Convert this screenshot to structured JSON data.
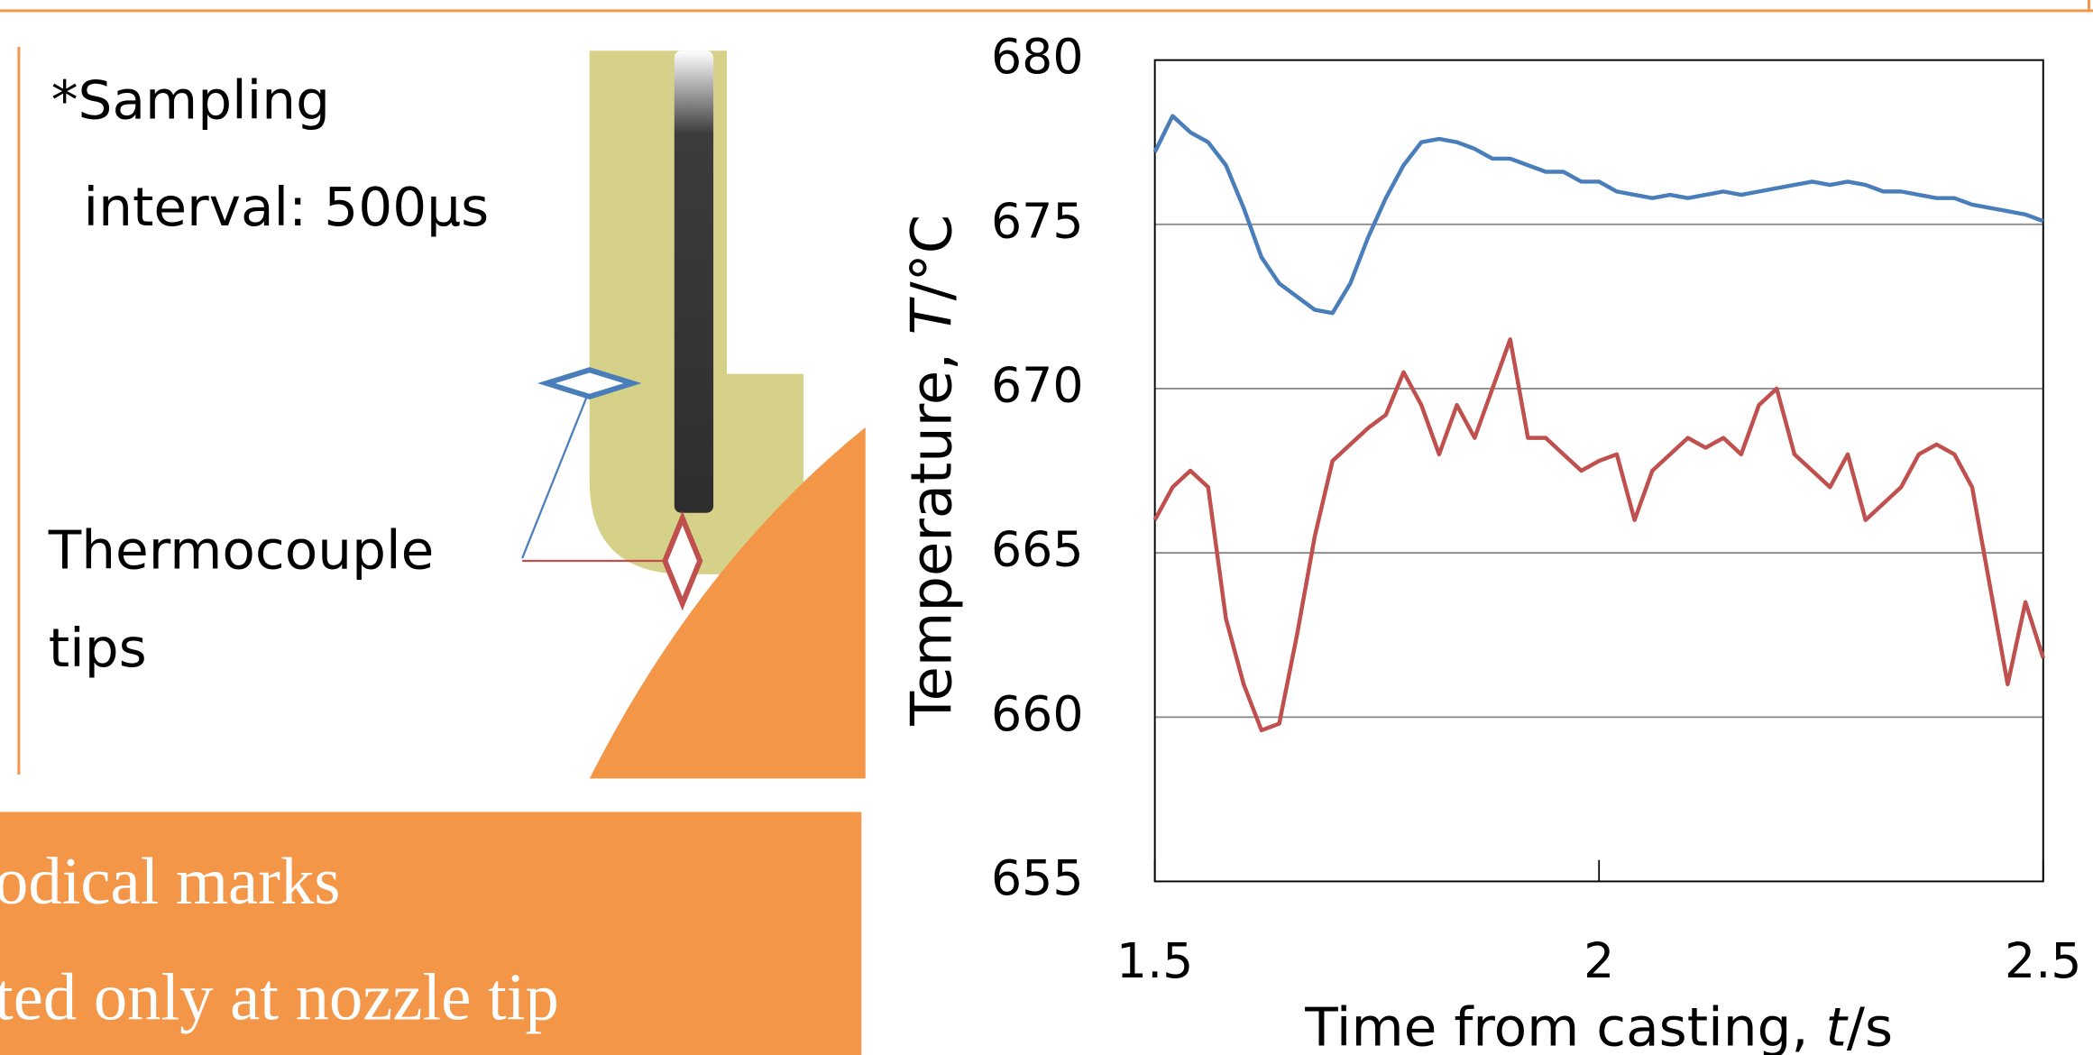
{
  "diagram": {
    "note_lines": [
      "*Sampling",
      "interval: 500µs"
    ],
    "label_lines": [
      "Thermocouple",
      "tips"
    ]
  },
  "banner": {
    "lines": [
      "odical marks",
      "ted only at nozzle tip"
    ]
  },
  "chart_data": {
    "type": "line",
    "y_label_parts": [
      "Temperature, ",
      "T",
      "/°C"
    ],
    "x_label_parts": [
      "Time from casting, ",
      "t",
      "/s"
    ],
    "x": [
      1.5,
      1.52,
      1.54,
      1.56,
      1.58,
      1.6,
      1.62,
      1.64,
      1.66,
      1.68,
      1.7,
      1.72,
      1.74,
      1.76,
      1.78,
      1.8,
      1.82,
      1.84,
      1.86,
      1.88,
      1.9,
      1.92,
      1.94,
      1.96,
      1.98,
      2.0,
      2.02,
      2.04,
      2.06,
      2.08,
      2.1,
      2.12,
      2.14,
      2.16,
      2.18,
      2.2,
      2.22,
      2.24,
      2.26,
      2.28,
      2.3,
      2.32,
      2.34,
      2.36,
      2.38,
      2.4,
      2.42,
      2.44,
      2.46,
      2.48,
      2.5
    ],
    "series": [
      {
        "color": "#4a7ebb",
        "values": [
          677.2,
          678.3,
          677.8,
          677.5,
          676.8,
          675.5,
          674,
          673.2,
          672.8,
          672.4,
          672.3,
          673.2,
          674.6,
          675.8,
          676.8,
          677.5,
          677.6,
          677.5,
          677.3,
          677,
          677,
          676.8,
          676.6,
          676.6,
          676.3,
          676.3,
          676,
          675.9,
          675.8,
          675.9,
          675.8,
          675.9,
          676,
          675.9,
          676,
          676.1,
          676.2,
          676.3,
          676.2,
          676.3,
          676.2,
          676,
          676,
          675.9,
          675.8,
          675.8,
          675.6,
          675.5,
          675.4,
          675.3,
          675.1
        ]
      },
      {
        "color": "#c0504d",
        "values": [
          666,
          667,
          667.5,
          667,
          663,
          661,
          659.6,
          659.8,
          662.5,
          665.5,
          667.8,
          668.3,
          668.8,
          669.2,
          670.5,
          669.5,
          668,
          669.5,
          668.5,
          670,
          671.5,
          668.5,
          668.5,
          668,
          667.5,
          667.8,
          668,
          666,
          667.5,
          668,
          668.5,
          668.2,
          668.5,
          668,
          669.5,
          670,
          668,
          667.5,
          667,
          668,
          666,
          666.5,
          667,
          668,
          668.3,
          668,
          667,
          664,
          661,
          663.5,
          661.8
        ]
      }
    ],
    "xlim": [
      1.5,
      2.5
    ],
    "ylim": [
      655,
      680
    ],
    "xticks": [
      1.5,
      2,
      2.5
    ],
    "yticks": [
      655,
      660,
      665,
      670,
      675,
      680
    ],
    "grid": true
  }
}
